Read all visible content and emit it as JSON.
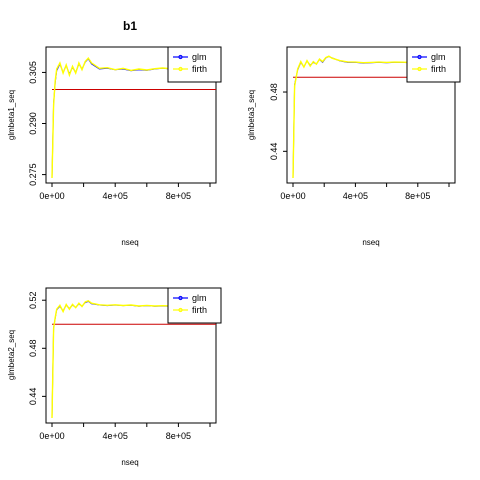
{
  "chart_data": [
    {
      "type": "line",
      "title": "b1",
      "xlabel": "nseq",
      "ylabel": "glmbeta1_seq",
      "xlim": [
        0,
        1000000
      ],
      "ylim": [
        0.274,
        0.311
      ],
      "xticks": [
        0,
        400000,
        800000
      ],
      "xtick_labels": [
        "0e+00",
        "4e+05",
        "8e+05"
      ],
      "yticks": [
        0.275,
        0.29,
        0.305
      ],
      "ytick_labels": [
        "0.275",
        "0.290",
        "0.305"
      ],
      "legend": {
        "position": "top-right",
        "entries": [
          {
            "label": "glm",
            "color": "#0000ff"
          },
          {
            "label": "firth",
            "color": "#ffff00"
          }
        ]
      },
      "reference_line": {
        "y": 0.3,
        "color": "#cc0000"
      },
      "x": [
        0,
        10000,
        20000,
        30000,
        50000,
        70000,
        90000,
        110000,
        130000,
        150000,
        170000,
        190000,
        210000,
        230000,
        250000,
        300000,
        350000,
        400000,
        450000,
        500000,
        550000,
        600000,
        650000,
        700000,
        750000,
        800000,
        850000,
        900000,
        950000,
        1000000
      ],
      "series": [
        {
          "name": "glm",
          "color": "#0000ff",
          "values": [
            0.274,
            0.296,
            0.302,
            0.3055,
            0.3075,
            0.305,
            0.307,
            0.3045,
            0.3065,
            0.305,
            0.3075,
            0.306,
            0.308,
            0.309,
            0.3075,
            0.306,
            0.3062,
            0.3058,
            0.306,
            0.3055,
            0.3058,
            0.3056,
            0.306,
            0.3062,
            0.306,
            0.3061,
            0.306,
            0.3062,
            0.306,
            0.306
          ]
        },
        {
          "name": "firth",
          "color": "#ffff00",
          "values": [
            0.274,
            0.2955,
            0.3025,
            0.306,
            0.3078,
            0.3048,
            0.3072,
            0.3042,
            0.3068,
            0.3048,
            0.3078,
            0.3058,
            0.3082,
            0.3092,
            0.3078,
            0.3062,
            0.3064,
            0.3058,
            0.3062,
            0.3056,
            0.306,
            0.3057,
            0.3061,
            0.3063,
            0.3061,
            0.3062,
            0.3061,
            0.3063,
            0.3061,
            0.3061
          ]
        }
      ]
    },
    {
      "type": "line",
      "title": "",
      "xlabel": "nseq",
      "ylabel": "glmbeta3_seq",
      "xlim": [
        0,
        1000000
      ],
      "ylim": [
        0.422,
        0.507
      ],
      "xticks": [
        0,
        400000,
        800000
      ],
      "xtick_labels": [
        "0e+00",
        "4e+05",
        "8e+05"
      ],
      "yticks": [
        0.44,
        0.48
      ],
      "ytick_labels": [
        "0.44",
        "0.48"
      ],
      "legend": {
        "position": "top-right",
        "entries": [
          {
            "label": "glm",
            "color": "#0000ff"
          },
          {
            "label": "firth",
            "color": "#ffff00"
          }
        ]
      },
      "reference_line": {
        "y": 0.49,
        "color": "#cc0000"
      },
      "x": [
        0,
        10000,
        20000,
        30000,
        50000,
        70000,
        90000,
        110000,
        130000,
        150000,
        170000,
        190000,
        210000,
        230000,
        250000,
        300000,
        350000,
        400000,
        450000,
        500000,
        550000,
        600000,
        650000,
        700000,
        750000,
        800000,
        850000,
        900000,
        950000,
        1000000
      ],
      "series": [
        {
          "name": "glm",
          "color": "#0000ff",
          "values": [
            0.422,
            0.485,
            0.49,
            0.495,
            0.5,
            0.497,
            0.501,
            0.498,
            0.5,
            0.499,
            0.502,
            0.5,
            0.503,
            0.504,
            0.503,
            0.501,
            0.5,
            0.5,
            0.4995,
            0.4998,
            0.5,
            0.4998,
            0.5,
            0.5,
            0.4998,
            0.4999,
            0.5,
            0.4999,
            0.5,
            0.5
          ]
        },
        {
          "name": "firth",
          "color": "#ffff00",
          "values": [
            0.422,
            0.484,
            0.4895,
            0.4955,
            0.5005,
            0.4968,
            0.5012,
            0.4975,
            0.5005,
            0.4988,
            0.5022,
            0.5005,
            0.5032,
            0.5042,
            0.5028,
            0.5012,
            0.5003,
            0.5002,
            0.4998,
            0.5,
            0.5002,
            0.5,
            0.5002,
            0.5001,
            0.5,
            0.5001,
            0.5002,
            0.5001,
            0.5002,
            0.5002
          ]
        }
      ]
    },
    {
      "type": "line",
      "title": "",
      "xlabel": "nseq",
      "ylabel": "glmbeta2_seq",
      "xlim": [
        0,
        1000000
      ],
      "ylim": [
        0.422,
        0.526
      ],
      "xticks": [
        0,
        400000,
        800000
      ],
      "xtick_labels": [
        "0e+00",
        "4e+05",
        "8e+05"
      ],
      "yticks": [
        0.44,
        0.48,
        0.52
      ],
      "ytick_labels": [
        "0.44",
        "0.48",
        "0.52"
      ],
      "legend": {
        "position": "top-right",
        "entries": [
          {
            "label": "glm",
            "color": "#0000ff"
          },
          {
            "label": "firth",
            "color": "#ffff00"
          }
        ]
      },
      "reference_line": {
        "y": 0.5,
        "color": "#cc0000"
      },
      "x": [
        0,
        10000,
        20000,
        30000,
        50000,
        70000,
        90000,
        110000,
        130000,
        150000,
        170000,
        190000,
        210000,
        230000,
        250000,
        300000,
        350000,
        400000,
        450000,
        500000,
        550000,
        600000,
        650000,
        700000,
        750000,
        800000,
        850000,
        900000,
        950000,
        1000000
      ],
      "series": [
        {
          "name": "glm",
          "color": "#0000ff",
          "values": [
            0.422,
            0.497,
            0.505,
            0.512,
            0.515,
            0.511,
            0.516,
            0.513,
            0.516,
            0.514,
            0.517,
            0.515,
            0.518,
            0.519,
            0.517,
            0.516,
            0.5155,
            0.516,
            0.5155,
            0.5158,
            0.515,
            0.5155,
            0.515,
            0.5152,
            0.515,
            0.5151,
            0.515,
            0.5152,
            0.515,
            0.5151
          ]
        },
        {
          "name": "firth",
          "color": "#ffff00",
          "values": [
            0.422,
            0.4965,
            0.5055,
            0.5125,
            0.5158,
            0.5105,
            0.5165,
            0.5125,
            0.5165,
            0.5138,
            0.5175,
            0.5148,
            0.5185,
            0.5195,
            0.5175,
            0.5162,
            0.5158,
            0.5162,
            0.5156,
            0.516,
            0.5152,
            0.5157,
            0.5152,
            0.5154,
            0.5152,
            0.5153,
            0.5152,
            0.5154,
            0.5152,
            0.5153
          ]
        }
      ]
    }
  ]
}
